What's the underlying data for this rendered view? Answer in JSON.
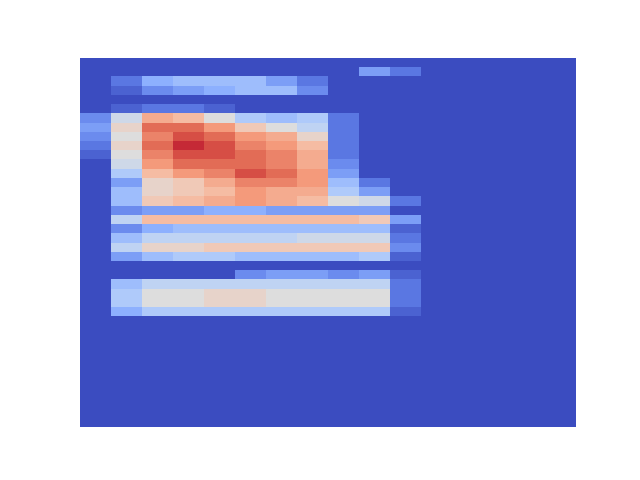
{
  "chart_data": {
    "type": "heatmap",
    "color": "coolwarm",
    "tick_labels": false,
    "color_range": [
      0,
      1
    ],
    "cells": [
      [
        0,
        0,
        0,
        0,
        0,
        0,
        0,
        0,
        0,
        0,
        0,
        0,
        0,
        0,
        0,
        0
      ],
      [
        0,
        0,
        0,
        0,
        0,
        0,
        0,
        0,
        0,
        0.2,
        0.1,
        0,
        0,
        0,
        0,
        0
      ],
      [
        0,
        0.1,
        0.25,
        0.3,
        0.3,
        0.3,
        0.2,
        0.1,
        0,
        0,
        0,
        0,
        0,
        0,
        0,
        0
      ],
      [
        0,
        0.05,
        0.15,
        0.2,
        0.25,
        0.3,
        0.3,
        0.15,
        0,
        0,
        0,
        0,
        0,
        0,
        0,
        0
      ],
      [
        0,
        0,
        0,
        0,
        0,
        0,
        0,
        0,
        0,
        0,
        0,
        0,
        0,
        0,
        0,
        0
      ],
      [
        0,
        0.05,
        0.1,
        0.1,
        0.05,
        0,
        0,
        0,
        0,
        0,
        0,
        0,
        0,
        0,
        0,
        0
      ],
      [
        0.15,
        0.45,
        0.7,
        0.65,
        0.5,
        0.35,
        0.3,
        0.35,
        0.1,
        0,
        0,
        0,
        0,
        0,
        0,
        0
      ],
      [
        0.2,
        0.55,
        0.85,
        0.85,
        0.75,
        0.6,
        0.5,
        0.4,
        0.1,
        0,
        0,
        0,
        0,
        0,
        0,
        0
      ],
      [
        0.15,
        0.5,
        0.8,
        0.9,
        0.85,
        0.75,
        0.7,
        0.55,
        0.1,
        0,
        0,
        0,
        0,
        0,
        0,
        0
      ],
      [
        0.1,
        0.55,
        0.85,
        0.95,
        0.9,
        0.8,
        0.75,
        0.65,
        0.1,
        0,
        0,
        0,
        0,
        0,
        0,
        0
      ],
      [
        0.05,
        0.5,
        0.8,
        0.9,
        0.9,
        0.85,
        0.8,
        0.7,
        0.1,
        0,
        0,
        0,
        0,
        0,
        0,
        0
      ],
      [
        0,
        0.45,
        0.75,
        0.85,
        0.85,
        0.85,
        0.8,
        0.7,
        0.15,
        0,
        0,
        0,
        0,
        0,
        0,
        0
      ],
      [
        0,
        0.35,
        0.65,
        0.75,
        0.8,
        0.9,
        0.85,
        0.75,
        0.2,
        0,
        0,
        0,
        0,
        0,
        0,
        0
      ],
      [
        0,
        0.2,
        0.55,
        0.6,
        0.7,
        0.8,
        0.8,
        0.75,
        0.3,
        0.1,
        0,
        0,
        0,
        0,
        0,
        0
      ],
      [
        0,
        0.3,
        0.55,
        0.6,
        0.65,
        0.75,
        0.7,
        0.7,
        0.35,
        0.2,
        0,
        0,
        0,
        0,
        0,
        0
      ],
      [
        0,
        0.3,
        0.6,
        0.65,
        0.7,
        0.75,
        0.7,
        0.65,
        0.5,
        0.45,
        0.1,
        0,
        0,
        0,
        0,
        0
      ],
      [
        0,
        0.15,
        0.2,
        0.2,
        0.25,
        0.25,
        0.2,
        0.2,
        0.2,
        0.2,
        0,
        0,
        0,
        0,
        0,
        0
      ],
      [
        0,
        0.4,
        0.65,
        0.65,
        0.65,
        0.65,
        0.65,
        0.65,
        0.65,
        0.6,
        0.2,
        0,
        0,
        0,
        0,
        0
      ],
      [
        0,
        0.15,
        0.25,
        0.3,
        0.3,
        0.3,
        0.3,
        0.3,
        0.3,
        0.3,
        0.05,
        0,
        0,
        0,
        0,
        0
      ],
      [
        0,
        0.3,
        0.4,
        0.4,
        0.4,
        0.4,
        0.4,
        0.45,
        0.45,
        0.45,
        0.1,
        0,
        0,
        0,
        0,
        0
      ],
      [
        0,
        0.4,
        0.55,
        0.55,
        0.6,
        0.6,
        0.6,
        0.6,
        0.6,
        0.6,
        0.15,
        0,
        0,
        0,
        0,
        0
      ],
      [
        0,
        0.2,
        0.3,
        0.35,
        0.35,
        0.3,
        0.3,
        0.3,
        0.3,
        0.35,
        0.05,
        0,
        0,
        0,
        0,
        0
      ],
      [
        0,
        0,
        0,
        0,
        0,
        0,
        0,
        0,
        0,
        0,
        0,
        0,
        0,
        0,
        0,
        0
      ],
      [
        0,
        0,
        0,
        0,
        0,
        0.15,
        0.2,
        0.2,
        0.15,
        0.2,
        0.05,
        0,
        0,
        0,
        0,
        0
      ],
      [
        0,
        0.3,
        0.4,
        0.4,
        0.4,
        0.4,
        0.4,
        0.4,
        0.4,
        0.4,
        0.1,
        0,
        0,
        0,
        0,
        0
      ],
      [
        0,
        0.35,
        0.5,
        0.5,
        0.55,
        0.55,
        0.5,
        0.5,
        0.5,
        0.5,
        0.1,
        0,
        0,
        0,
        0,
        0
      ],
      [
        0,
        0.35,
        0.5,
        0.5,
        0.55,
        0.55,
        0.5,
        0.5,
        0.5,
        0.5,
        0.1,
        0,
        0,
        0,
        0,
        0
      ],
      [
        0,
        0.25,
        0.35,
        0.35,
        0.35,
        0.35,
        0.35,
        0.35,
        0.35,
        0.35,
        0.05,
        0,
        0,
        0,
        0,
        0
      ],
      [
        0,
        0,
        0,
        0,
        0,
        0,
        0,
        0,
        0,
        0,
        0,
        0,
        0,
        0,
        0,
        0
      ],
      [
        0,
        0,
        0,
        0,
        0,
        0,
        0,
        0,
        0,
        0,
        0,
        0,
        0,
        0,
        0,
        0
      ],
      [
        0,
        0,
        0,
        0,
        0,
        0,
        0,
        0,
        0,
        0,
        0,
        0,
        0,
        0,
        0,
        0
      ],
      [
        0,
        0,
        0,
        0,
        0,
        0,
        0,
        0,
        0,
        0,
        0,
        0,
        0,
        0,
        0,
        0
      ],
      [
        0,
        0,
        0,
        0,
        0,
        0,
        0,
        0,
        0,
        0,
        0,
        0,
        0,
        0,
        0,
        0
      ],
      [
        0,
        0,
        0,
        0,
        0,
        0,
        0,
        0,
        0,
        0,
        0,
        0,
        0,
        0,
        0,
        0
      ],
      [
        0,
        0,
        0,
        0,
        0,
        0,
        0,
        0,
        0,
        0,
        0,
        0,
        0,
        0,
        0,
        0
      ],
      [
        0,
        0,
        0,
        0,
        0,
        0,
        0,
        0,
        0,
        0,
        0,
        0,
        0,
        0,
        0,
        0
      ],
      [
        0,
        0,
        0,
        0,
        0,
        0,
        0,
        0,
        0,
        0,
        0,
        0,
        0,
        0,
        0,
        0
      ],
      [
        0,
        0,
        0,
        0,
        0,
        0,
        0,
        0,
        0,
        0,
        0,
        0,
        0,
        0,
        0,
        0
      ],
      [
        0,
        0,
        0,
        0,
        0,
        0,
        0,
        0,
        0,
        0,
        0,
        0,
        0,
        0,
        0,
        0
      ],
      [
        0,
        0,
        0,
        0,
        0,
        0,
        0,
        0,
        0,
        0,
        0,
        0,
        0,
        0,
        0,
        0
      ]
    ]
  }
}
